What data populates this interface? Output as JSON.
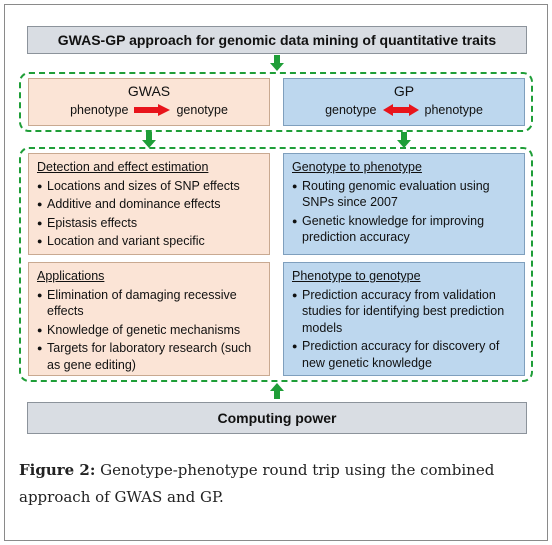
{
  "top_banner": "GWAS-GP approach for genomic data mining of quantitative traits",
  "gwas": {
    "title": "GWAS",
    "left": "phenotype",
    "right": "genotype"
  },
  "gp": {
    "title": "GP",
    "left": "genotype",
    "right": "phenotype"
  },
  "detection": {
    "heading": "Detection and effect estimation",
    "items": [
      "Locations and sizes of SNP effects",
      "Additive and dominance effects",
      "Epistasis effects",
      "Location and variant specific"
    ]
  },
  "g2p": {
    "heading": "Genotype to phenotype",
    "items": [
      "Routing genomic evaluation using SNPs since 2007",
      "Genetic knowledge for improving prediction accuracy"
    ]
  },
  "applications": {
    "heading": "Applications",
    "items": [
      "Elimination of damaging recessive effects",
      "Knowledge of genetic mechanisms",
      "Targets for laboratory research (such as gene editing)"
    ]
  },
  "p2g": {
    "heading": "Phenotype to genotype",
    "items": [
      "Prediction accuracy from validation studies for identifying best prediction models",
      "Prediction accuracy for discovery of new genetic knowledge"
    ]
  },
  "bottom_banner": "Computing power",
  "caption": {
    "label": "Figure 2:",
    "text": " Genotype-phenotype round trip using the combined approach of GWAS and GP."
  },
  "colors": {
    "arrow_green": "#1f9e38",
    "arrow_red": "#e8141b",
    "pink_fill": "#fbe4d6",
    "blue_fill": "#bdd7ee"
  }
}
